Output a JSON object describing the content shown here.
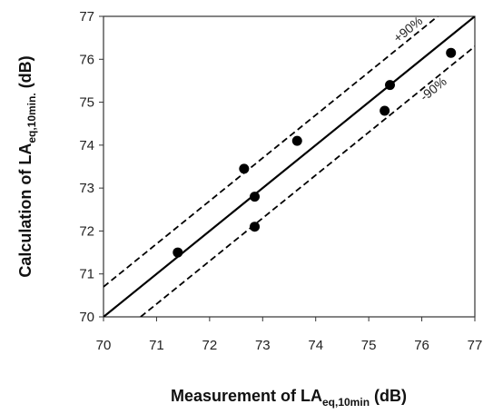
{
  "chart_data": {
    "type": "scatter",
    "xlabel": {
      "main": "Measurement of LA",
      "sub": "eq,10min",
      "unit": " (dB)"
    },
    "ylabel": {
      "main": "Calculation of LA",
      "sub": "eq,10min.",
      "unit": "  (dB)"
    },
    "xlim": [
      70,
      77
    ],
    "ylim": [
      70,
      77
    ],
    "x_ticks": [
      70,
      71,
      72,
      73,
      74,
      75,
      76,
      77
    ],
    "y_ticks": [
      70,
      71,
      72,
      73,
      74,
      75,
      76,
      77
    ],
    "grid": false,
    "points": [
      {
        "x": 71.4,
        "y": 71.5
      },
      {
        "x": 72.65,
        "y": 73.45
      },
      {
        "x": 72.85,
        "y": 72.8
      },
      {
        "x": 72.85,
        "y": 72.1
      },
      {
        "x": 73.65,
        "y": 74.1
      },
      {
        "x": 75.3,
        "y": 74.8
      },
      {
        "x": 75.4,
        "y": 75.4
      },
      {
        "x": 76.55,
        "y": 76.15
      }
    ],
    "lines": [
      {
        "style": "solid",
        "from": [
          70,
          70
        ],
        "to": [
          77,
          77
        ]
      },
      {
        "label": "+90%",
        "style": "dashed",
        "from": [
          70,
          70.7
        ],
        "to": [
          76.3,
          77
        ]
      },
      {
        "label": "-90%",
        "style": "dashed",
        "from": [
          70.7,
          70
        ],
        "to": [
          77,
          76.3
        ]
      }
    ],
    "colors": {
      "marker": "#000000",
      "line": "#000000"
    }
  }
}
